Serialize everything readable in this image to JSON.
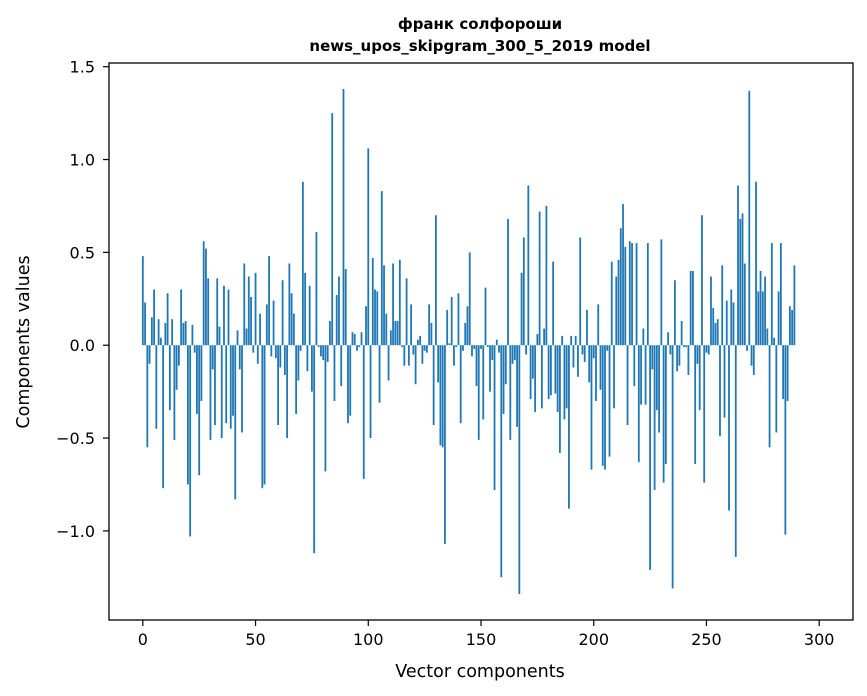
{
  "chart_data": {
    "type": "bar",
    "title_line1": "франк солфороши",
    "title_line2": "news_upos_skipgram_300_5_2019 model",
    "xlabel": "Vector components",
    "ylabel": "Components values",
    "xlim": [
      -15,
      315
    ],
    "ylim": [
      -1.48,
      1.52
    ],
    "xticks": [
      0,
      50,
      100,
      150,
      200,
      250,
      300
    ],
    "xtick_labels": [
      "0",
      "50",
      "100",
      "150",
      "200",
      "250",
      "300"
    ],
    "yticks": [
      1.5,
      1.0,
      0.5,
      0.0,
      -0.5,
      -1.0
    ],
    "ytick_labels": [
      "1.5",
      "1.0",
      "0.5",
      "0.0",
      "−0.5",
      "−1.0"
    ],
    "grid": false,
    "bar_color": "#1f77b4",
    "values": [
      0.48,
      0.23,
      -0.55,
      -0.1,
      0.15,
      0.3,
      -0.45,
      0.14,
      0.04,
      -0.77,
      0.12,
      0.28,
      -0.35,
      0.14,
      -0.51,
      -0.24,
      -0.11,
      0.3,
      0.12,
      0.13,
      -0.75,
      -1.03,
      0.11,
      -0.04,
      -0.37,
      -0.7,
      -0.3,
      0.56,
      0.52,
      0.36,
      -0.51,
      -0.13,
      -0.43,
      0.36,
      0.1,
      -0.5,
      0.32,
      -0.42,
      0.3,
      -0.45,
      -0.38,
      -0.83,
      0.08,
      -0.13,
      -0.47,
      0.44,
      0.09,
      0.37,
      0.26,
      -0.04,
      0.39,
      -0.1,
      0.17,
      -0.77,
      -0.75,
      0.22,
      0.48,
      -0.06,
      0.24,
      -0.07,
      -0.43,
      -0.12,
      0.35,
      -0.16,
      -0.5,
      0.44,
      0.28,
      0.17,
      -0.37,
      -0.19,
      -0.03,
      0.88,
      0.39,
      -0.14,
      0.32,
      -0.25,
      -1.12,
      0.61,
      -0.01,
      -0.06,
      -0.08,
      -0.68,
      -0.09,
      0.13,
      1.25,
      -0.3,
      0.27,
      0.37,
      -0.22,
      1.38,
      0.41,
      -0.42,
      -0.38,
      0.07,
      0.06,
      -0.03,
      -0.01,
      0.07,
      -0.72,
      0.21,
      1.06,
      -0.5,
      0.47,
      0.3,
      0.29,
      -0.31,
      0.83,
      0.43,
      0.17,
      -0.19,
      0.08,
      0.44,
      0.13,
      0.13,
      0.46,
      -0.01,
      -0.11,
      0.36,
      -0.11,
      0.22,
      -0.05,
      -0.21,
      0.03,
      0.05,
      -0.1,
      -0.03,
      -0.04,
      0.22,
      0.12,
      -0.43,
      0.7,
      -0.2,
      -0.54,
      -0.55,
      -1.07,
      0.19,
      0.01,
      0.26,
      -0.11,
      -0.01,
      0.28,
      -0.42,
      -0.03,
      0.12,
      0.21,
      0.5,
      -0.06,
      -0.02,
      -0.22,
      -0.51,
      -0.02,
      -0.4,
      0.31,
      -0.01,
      -0.25,
      -0.08,
      -0.78,
      0.03,
      -0.04,
      -1.25,
      -0.37,
      -0.21,
      0.68,
      -0.51,
      -0.1,
      -0.08,
      -0.44,
      -1.34,
      0.39,
      0.58,
      -0.05,
      0.86,
      -0.29,
      -0.18,
      -0.36,
      0.06,
      0.72,
      -0.34,
      0.09,
      0.75,
      -0.29,
      -0.27,
      0.45,
      -0.26,
      -0.36,
      -0.58,
      0.05,
      -0.4,
      -0.34,
      -0.88,
      0.05,
      -0.12,
      0.05,
      -0.17,
      0.58,
      -0.05,
      -0.09,
      0.19,
      -0.2,
      -0.67,
      -0.07,
      -0.3,
      0.22,
      -0.24,
      -0.65,
      -0.67,
      -0.03,
      -0.6,
      0.45,
      -0.34,
      0.37,
      0.46,
      0.63,
      0.76,
      0.53,
      -0.43,
      0.56,
      0.55,
      -0.22,
      0.55,
      -0.63,
      -0.32,
      0.09,
      -0.32,
      0.55,
      -1.21,
      -0.13,
      -0.78,
      -0.35,
      -0.47,
      0.57,
      -0.74,
      -0.64,
      0.07,
      -0.05,
      -1.31,
      0.35,
      -0.14,
      -0.11,
      0.13,
      -0.01,
      -0.01,
      -0.16,
      0.4,
      0.4,
      -0.64,
      -0.1,
      -0.35,
      0.7,
      -0.74,
      -0.04,
      -0.05,
      0.37,
      0.2,
      0.12,
      0.14,
      -0.49,
      0.43,
      -0.39,
      0.24,
      -0.89,
      0.3,
      0.23,
      -1.14,
      0.86,
      0.68,
      0.71,
      0.44,
      -0.03,
      1.37,
      -0.11,
      -0.16,
      0.88,
      0.29,
      0.4,
      0.29,
      0.37,
      0.09,
      -0.55,
      0.55,
      0.04,
      -0.47,
      0.29,
      0.55,
      -0.29,
      -1.02,
      -0.3,
      0.21,
      0.19,
      0.43
    ]
  }
}
